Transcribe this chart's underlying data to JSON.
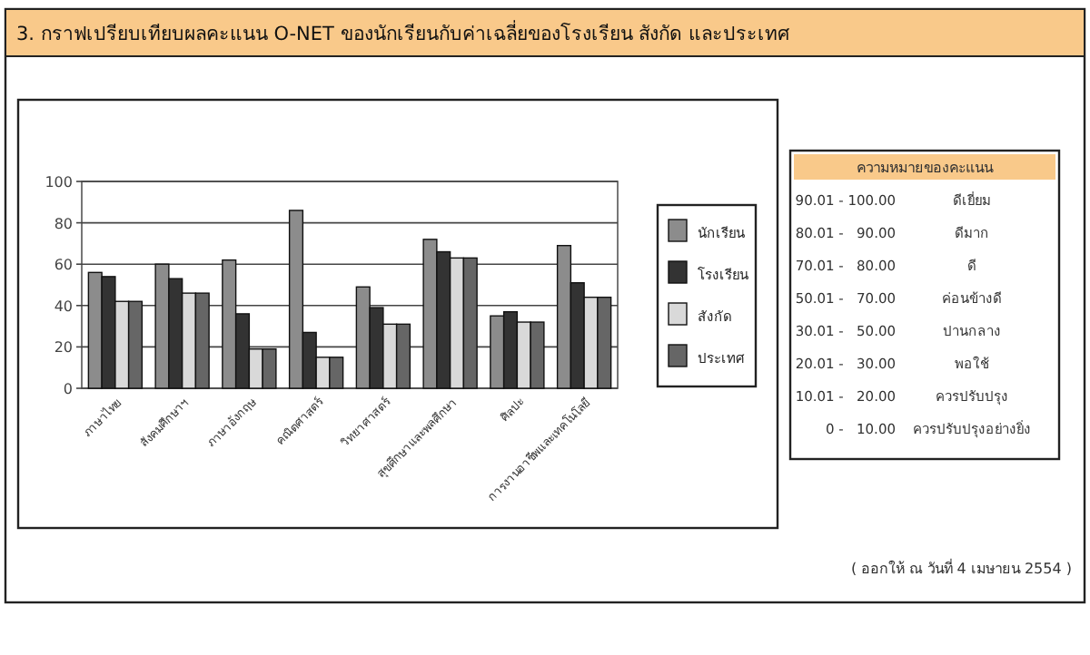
{
  "chart_data": [
    {
      "type": "bar",
      "title": "3. กราฟเปรียบเทียบผลคะแนน O-NET ของนักเรียนกับค่าเฉลี่ยของโรงเรียน สังกัด และประเทศ",
      "categories": [
        "ภาษาไทย",
        "สังคมศึกษาฯ",
        "ภาษาอังกฤษ",
        "คณิตศาสตร์",
        "วิทยาศาสตร์",
        "สุขศึกษาและพลศึกษา",
        "ศิลปะ",
        "การงานอาชีพและเทคโนโลยี"
      ],
      "series": [
        {
          "name": "นักเรียน",
          "color": "#8c8c8c",
          "values": [
            56,
            60,
            62,
            86,
            49,
            72,
            35,
            69
          ]
        },
        {
          "name": "โรงเรียน",
          "color": "#333333",
          "values": [
            54,
            53,
            36,
            27,
            39,
            66,
            37,
            51
          ]
        },
        {
          "name": "สังกัด",
          "color": "#d9d9d9",
          "values": [
            42,
            46,
            19,
            15,
            31,
            63,
            32,
            44
          ]
        },
        {
          "name": "ประเทศ",
          "color": "#666666",
          "values": [
            42,
            46,
            19,
            15,
            31,
            63,
            32,
            44
          ]
        }
      ],
      "ylim": [
        0,
        100
      ],
      "yticks": [
        0,
        20,
        40,
        60,
        80,
        100
      ],
      "grid": "y",
      "legend": "right",
      "annotations": [
        "( ออกให้ ณ วันที่ 4 เมษายน 2554 )"
      ]
    },
    {
      "type": "other",
      "title": "ความหมายของคะแนน",
      "annotations": [
        "90.01 - 100.00",
        "ดีเยี่ยม",
        "80.01 -   90.00",
        "ดีมาก",
        "70.01 -   80.00",
        "ดี",
        "50.01 -   70.00",
        "ค่อนข้างดี",
        "30.01 -   50.00",
        "ปานกลาง",
        "20.01 -   30.00",
        "พอใช้",
        "10.01 -   20.00",
        "ควรปรับปรุง",
        "0 -   10.00",
        "ควรปรับปรุงอย่างยิ่ง"
      ]
    }
  ]
}
